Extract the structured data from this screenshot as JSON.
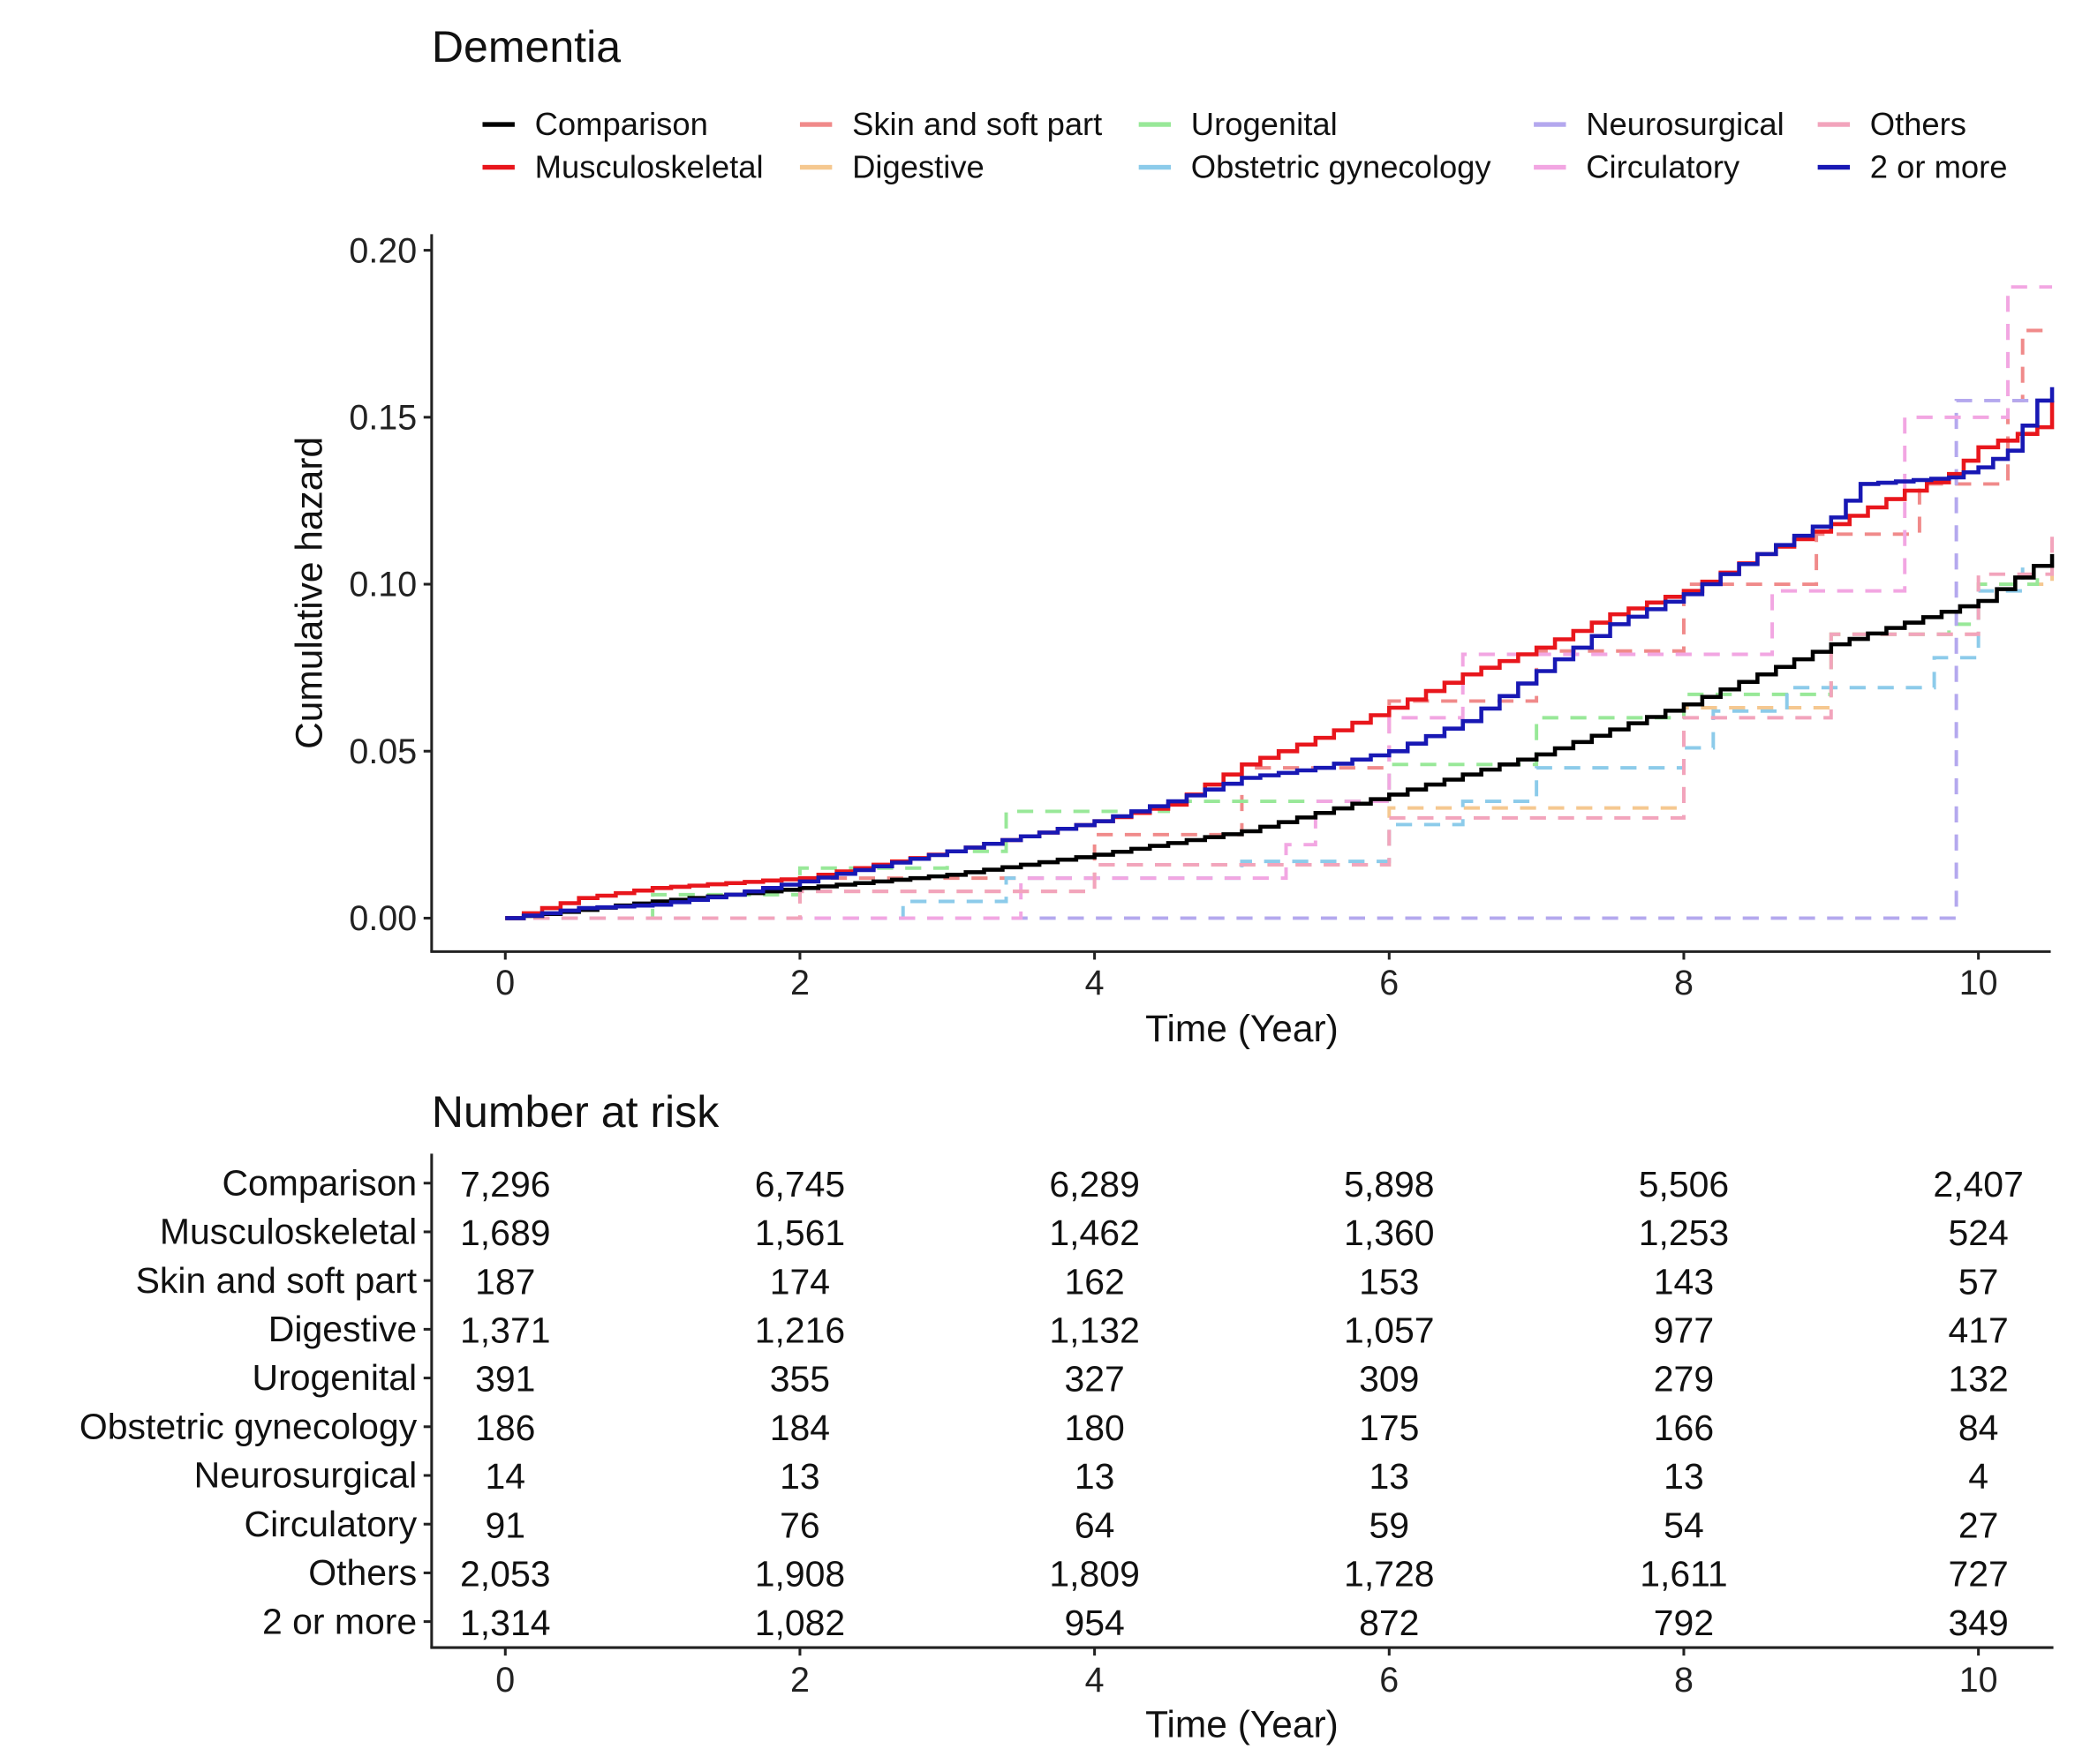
{
  "chart_data": {
    "type": "line",
    "title": "Dementia",
    "xlabel": "Time (Year)",
    "ylabel": "Cumulative hazard",
    "xlim": [
      -0.5,
      10.5
    ],
    "ylim": [
      -0.01,
      0.205
    ],
    "xticks": [
      "0",
      "2",
      "4",
      "6",
      "8",
      "10"
    ],
    "xtick_values": [
      0,
      2,
      4,
      6,
      8,
      10
    ],
    "yticks": [
      "0.00",
      "0.05",
      "0.10",
      "0.15",
      "0.20"
    ],
    "ytick_values": [
      0,
      0.05,
      0.1,
      0.15,
      0.2
    ],
    "legend_placement": "top",
    "series": [
      {
        "name": "Comparison",
        "color": "#000000",
        "dashed": false,
        "points": [
          [
            0,
            0
          ],
          [
            1,
            0.005
          ],
          [
            2,
            0.009
          ],
          [
            3,
            0.013
          ],
          [
            4,
            0.019
          ],
          [
            5,
            0.026
          ],
          [
            6,
            0.037
          ],
          [
            7,
            0.049
          ],
          [
            8,
            0.064
          ],
          [
            9,
            0.082
          ],
          [
            10,
            0.095
          ],
          [
            10.5,
            0.109
          ]
        ]
      },
      {
        "name": "Musculoskeletal",
        "color": "#e8161c",
        "dashed": false,
        "points": [
          [
            0,
            0
          ],
          [
            0.5,
            0.006
          ],
          [
            1,
            0.009
          ],
          [
            2,
            0.012
          ],
          [
            3,
            0.02
          ],
          [
            4,
            0.029
          ],
          [
            4.5,
            0.034
          ],
          [
            5,
            0.046
          ],
          [
            5.5,
            0.054
          ],
          [
            6,
            0.063
          ],
          [
            6.5,
            0.073
          ],
          [
            7,
            0.081
          ],
          [
            7.5,
            0.091
          ],
          [
            8,
            0.098
          ],
          [
            8.5,
            0.109
          ],
          [
            9,
            0.118
          ],
          [
            9.5,
            0.128
          ],
          [
            9.8,
            0.133
          ],
          [
            10,
            0.141
          ],
          [
            10.4,
            0.147
          ],
          [
            10.5,
            0.155
          ]
        ]
      },
      {
        "name": "Skin and soft part",
        "color": "#f08a8a",
        "dashed": true,
        "points": [
          [
            0,
            0
          ],
          [
            2,
            0.012
          ],
          [
            4,
            0.025
          ],
          [
            5,
            0.045
          ],
          [
            6,
            0.065
          ],
          [
            7,
            0.08
          ],
          [
            8,
            0.1
          ],
          [
            8.9,
            0.115
          ],
          [
            9.6,
            0.13
          ],
          [
            10.2,
            0.155
          ],
          [
            10.3,
            0.176
          ],
          [
            10.5,
            0.176
          ]
        ]
      },
      {
        "name": "Digestive",
        "color": "#f5c890",
        "dashed": true,
        "points": [
          [
            0,
            0
          ],
          [
            2,
            0.008
          ],
          [
            4,
            0.016
          ],
          [
            6,
            0.033
          ],
          [
            8,
            0.063
          ],
          [
            9,
            0.085
          ],
          [
            10,
            0.1
          ],
          [
            10.5,
            0.113
          ]
        ]
      },
      {
        "name": "Urogenital",
        "color": "#98e898",
        "dashed": true,
        "points": [
          [
            0,
            0
          ],
          [
            1,
            0.007
          ],
          [
            2,
            0.015
          ],
          [
            3,
            0.02
          ],
          [
            3.4,
            0.032
          ],
          [
            4.5,
            0.035
          ],
          [
            6,
            0.046
          ],
          [
            7,
            0.06
          ],
          [
            8,
            0.067
          ],
          [
            9,
            0.085
          ],
          [
            9.8,
            0.088
          ],
          [
            10,
            0.1
          ],
          [
            10.4,
            0.105
          ]
        ]
      },
      {
        "name": "Obstetric gynecology",
        "color": "#8ccbea",
        "dashed": true,
        "points": [
          [
            0,
            0
          ],
          [
            2.7,
            0.005
          ],
          [
            3.4,
            0.012
          ],
          [
            5,
            0.017
          ],
          [
            6,
            0.028
          ],
          [
            6.5,
            0.035
          ],
          [
            7,
            0.045
          ],
          [
            8,
            0.051
          ],
          [
            8.2,
            0.062
          ],
          [
            8.7,
            0.069
          ],
          [
            9.7,
            0.078
          ],
          [
            10,
            0.098
          ],
          [
            10.3,
            0.105
          ]
        ]
      },
      {
        "name": "Neurosurgical",
        "color": "#b4a8ee",
        "dashed": true,
        "points": [
          [
            0,
            0
          ],
          [
            9.85,
            0.155
          ],
          [
            10.5,
            0.155
          ]
        ]
      },
      {
        "name": "Circulatory",
        "color": "#f2a6e2",
        "dashed": true,
        "points": [
          [
            0,
            0
          ],
          [
            3.5,
            0.012
          ],
          [
            5.3,
            0.022
          ],
          [
            5.5,
            0.035
          ],
          [
            6,
            0.06
          ],
          [
            6.5,
            0.079
          ],
          [
            8.6,
            0.098
          ],
          [
            9.5,
            0.15
          ],
          [
            10.2,
            0.189
          ],
          [
            10.5,
            0.189
          ]
        ]
      },
      {
        "name": "Others",
        "color": "#f2a4bc",
        "dashed": true,
        "points": [
          [
            0,
            0
          ],
          [
            2,
            0.008
          ],
          [
            4,
            0.016
          ],
          [
            6,
            0.03
          ],
          [
            8,
            0.06
          ],
          [
            9,
            0.085
          ],
          [
            10,
            0.103
          ],
          [
            10.5,
            0.117
          ]
        ]
      },
      {
        "name": "2 or more",
        "color": "#1818b4",
        "dashed": false,
        "points": [
          [
            0,
            0
          ],
          [
            0.5,
            0.003
          ],
          [
            1,
            0.004
          ],
          [
            1.5,
            0.007
          ],
          [
            2,
            0.011
          ],
          [
            3,
            0.02
          ],
          [
            4,
            0.029
          ],
          [
            4.5,
            0.035
          ],
          [
            5,
            0.042
          ],
          [
            5.5,
            0.045
          ],
          [
            6,
            0.05
          ],
          [
            6.5,
            0.059
          ],
          [
            7,
            0.074
          ],
          [
            7.5,
            0.088
          ],
          [
            8,
            0.097
          ],
          [
            8.5,
            0.109
          ],
          [
            9,
            0.12
          ],
          [
            9.2,
            0.13
          ],
          [
            9.8,
            0.132
          ],
          [
            10,
            0.135
          ],
          [
            10.2,
            0.14
          ],
          [
            10.4,
            0.155
          ],
          [
            10.5,
            0.159
          ]
        ]
      }
    ],
    "risk_table": {
      "title": "Number at risk",
      "xlabel": "Time (Year)",
      "times": [
        "0",
        "2",
        "4",
        "6",
        "8",
        "10"
      ],
      "rows": [
        {
          "label": "Comparison",
          "values": [
            "7,296",
            "6,745",
            "6,289",
            "5,898",
            "5,506",
            "2,407"
          ]
        },
        {
          "label": "Musculoskeletal",
          "values": [
            "1,689",
            "1,561",
            "1,462",
            "1,360",
            "1,253",
            "524"
          ]
        },
        {
          "label": "Skin and soft part",
          "values": [
            "187",
            "174",
            "162",
            "153",
            "143",
            "57"
          ]
        },
        {
          "label": "Digestive",
          "values": [
            "1,371",
            "1,216",
            "1,132",
            "1,057",
            "977",
            "417"
          ]
        },
        {
          "label": "Urogenital",
          "values": [
            "391",
            "355",
            "327",
            "309",
            "279",
            "132"
          ]
        },
        {
          "label": "Obstetric gynecology",
          "values": [
            "186",
            "184",
            "180",
            "175",
            "166",
            "84"
          ]
        },
        {
          "label": "Neurosurgical",
          "values": [
            "14",
            "13",
            "13",
            "13",
            "13",
            "4"
          ]
        },
        {
          "label": "Circulatory",
          "values": [
            "91",
            "76",
            "64",
            "59",
            "54",
            "27"
          ]
        },
        {
          "label": "Others",
          "values": [
            "2,053",
            "1,908",
            "1,809",
            "1,728",
            "1,611",
            "727"
          ]
        },
        {
          "label": "2 or more",
          "values": [
            "1,314",
            "1,082",
            "954",
            "872",
            "792",
            "349"
          ]
        }
      ]
    }
  }
}
